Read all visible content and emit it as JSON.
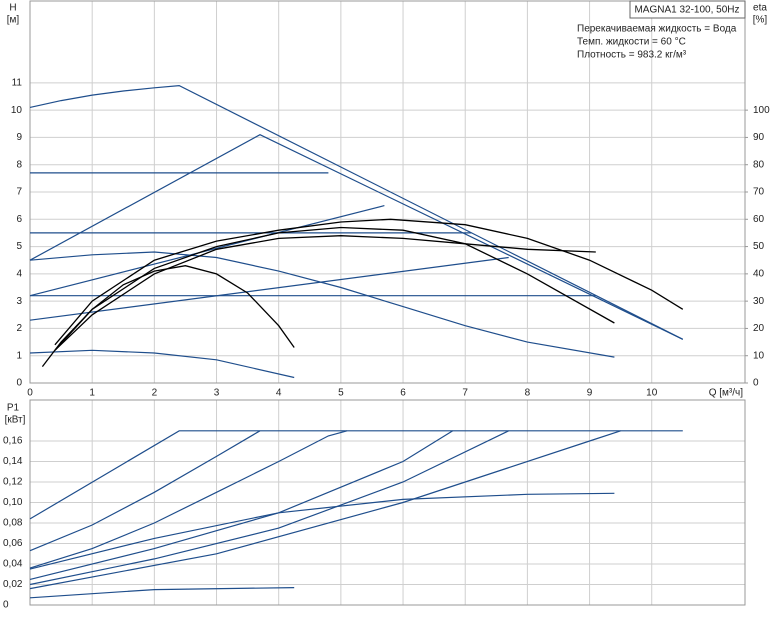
{
  "chart_data": [
    {
      "type": "line",
      "title": "MAGNA1 32-100, 50Hz",
      "annotations": [
        "Перекачиваемая жидкость = Вода",
        "Темп. жидкости = 60 °C",
        "Плотность = 983.2 кг/м³"
      ],
      "ylabel": "H",
      "yunit": "[м]",
      "y2label": "eta",
      "y2unit": "[%]",
      "xlabel": "Q [м³/ч]",
      "xlim": [
        0,
        11.5
      ],
      "xticks": [
        0,
        1,
        2,
        3,
        4,
        5,
        6,
        7,
        8,
        9,
        10
      ],
      "ylim": [
        0,
        14
      ],
      "yticks": [
        0,
        1,
        2,
        3,
        4,
        5,
        6,
        7,
        8,
        9,
        10,
        11
      ],
      "y2lim": [
        0,
        140
      ],
      "y2ticks": [
        0,
        10,
        20,
        30,
        40,
        50,
        60,
        70,
        80,
        90,
        100
      ],
      "grid": true,
      "series": [
        {
          "color": "#1f4e8c",
          "x": [
            0,
            0.5,
            1,
            1.5,
            2,
            2.4,
            10.5
          ],
          "values": [
            10.1,
            10.35,
            10.55,
            10.7,
            10.82,
            10.9,
            1.6
          ]
        },
        {
          "color": "#1f4e8c",
          "x": [
            0,
            3.7,
            10.5
          ],
          "values": [
            4.5,
            9.1,
            1.6
          ]
        },
        {
          "color": "#1f4e8c",
          "x": [
            0,
            4.8
          ],
          "values": [
            7.7,
            7.7
          ]
        },
        {
          "color": "#1f4e8c",
          "x": [
            0,
            7.1
          ],
          "values": [
            5.5,
            5.5
          ]
        },
        {
          "color": "#1f4e8c",
          "x": [
            0,
            9.1
          ],
          "values": [
            3.2,
            3.2
          ]
        },
        {
          "color": "#1f4e8c",
          "x": [
            0,
            5.7
          ],
          "values": [
            3.2,
            6.5
          ]
        },
        {
          "color": "#1f4e8c",
          "x": [
            0,
            7.7
          ],
          "values": [
            2.3,
            4.6
          ]
        },
        {
          "color": "#1f4e8c",
          "x": [
            0,
            1,
            2,
            3,
            4,
            5,
            6,
            7,
            8,
            9.4
          ],
          "values": [
            4.5,
            4.7,
            4.8,
            4.6,
            4.1,
            3.5,
            2.8,
            2.1,
            1.5,
            0.95
          ]
        },
        {
          "color": "#1f4e8c",
          "x": [
            0,
            1,
            2,
            3,
            4.25
          ],
          "values": [
            1.1,
            1.2,
            1.1,
            0.85,
            0.2
          ]
        },
        {
          "color": "#000000",
          "axis": "y2",
          "x": [
            0.2,
            0.5,
            1,
            1.5,
            2,
            2.5,
            3,
            3.5,
            4,
            4.25
          ],
          "values": [
            6,
            15,
            27,
            36,
            41,
            43,
            40,
            33,
            21,
            13
          ]
        },
        {
          "color": "#000000",
          "axis": "y2",
          "x": [
            0.4,
            1,
            2,
            3,
            4,
            5,
            5.8,
            7,
            8,
            9,
            10,
            10.5
          ],
          "values": [
            14,
            30,
            45,
            52,
            56,
            59,
            60,
            58,
            53,
            45,
            34,
            27
          ]
        },
        {
          "color": "#000000",
          "axis": "y2",
          "x": [
            0.4,
            1,
            2,
            3,
            4,
            5,
            6,
            7,
            8,
            9.4
          ],
          "values": [
            12,
            27,
            42,
            50,
            55,
            57,
            56,
            51,
            40,
            22
          ]
        },
        {
          "color": "#000000",
          "axis": "y2",
          "x": [
            0.4,
            1,
            2,
            3,
            4,
            5,
            6,
            7,
            8,
            9.1
          ],
          "values": [
            12,
            25,
            40,
            49,
            53,
            54,
            53,
            51,
            49,
            48
          ]
        }
      ]
    },
    {
      "type": "line",
      "ylabel": "P1",
      "yunit": "[кВт]",
      "xlim": [
        0,
        11.5
      ],
      "ylim": [
        0,
        0.2
      ],
      "yticks": [
        {
          "value": 0,
          "label": "0"
        },
        {
          "value": 0.02,
          "label": "0,02"
        },
        {
          "value": 0.04,
          "label": "0,04"
        },
        {
          "value": 0.06,
          "label": "0,06"
        },
        {
          "value": 0.08,
          "label": "0,08"
        },
        {
          "value": 0.1,
          "label": "0,10"
        },
        {
          "value": 0.12,
          "label": "0,12"
        },
        {
          "value": 0.14,
          "label": "0,14"
        },
        {
          "value": 0.16,
          "label": "0,16"
        }
      ],
      "grid": true,
      "series": [
        {
          "color": "#1f4e8c",
          "x": [
            0,
            2.4,
            10.5
          ],
          "values": [
            0.084,
            0.17,
            0.17
          ]
        },
        {
          "color": "#1f4e8c",
          "x": [
            0,
            1,
            2,
            3,
            3.7
          ],
          "values": [
            0.053,
            0.078,
            0.11,
            0.145,
            0.17
          ]
        },
        {
          "color": "#1f4e8c",
          "x": [
            0,
            1,
            2,
            3,
            4,
            4.8,
            5.1
          ],
          "values": [
            0.036,
            0.055,
            0.08,
            0.11,
            0.14,
            0.165,
            0.17
          ]
        },
        {
          "color": "#1f4e8c",
          "x": [
            0,
            2,
            4,
            6,
            6.8
          ],
          "values": [
            0.025,
            0.055,
            0.09,
            0.14,
            0.17
          ]
        },
        {
          "color": "#1f4e8c",
          "x": [
            0,
            2,
            4,
            6,
            7.7
          ],
          "values": [
            0.02,
            0.045,
            0.075,
            0.12,
            0.17
          ]
        },
        {
          "color": "#1f4e8c",
          "x": [
            0,
            3,
            6,
            9,
            9.5
          ],
          "values": [
            0.016,
            0.05,
            0.1,
            0.16,
            0.17
          ]
        },
        {
          "color": "#1f4e8c",
          "x": [
            0,
            2,
            4,
            6,
            8,
            9.4
          ],
          "values": [
            0.035,
            0.065,
            0.09,
            0.103,
            0.108,
            0.109
          ]
        },
        {
          "color": "#1f4e8c",
          "x": [
            0,
            2,
            4.25
          ],
          "values": [
            0.007,
            0.015,
            0.017
          ]
        }
      ]
    }
  ]
}
